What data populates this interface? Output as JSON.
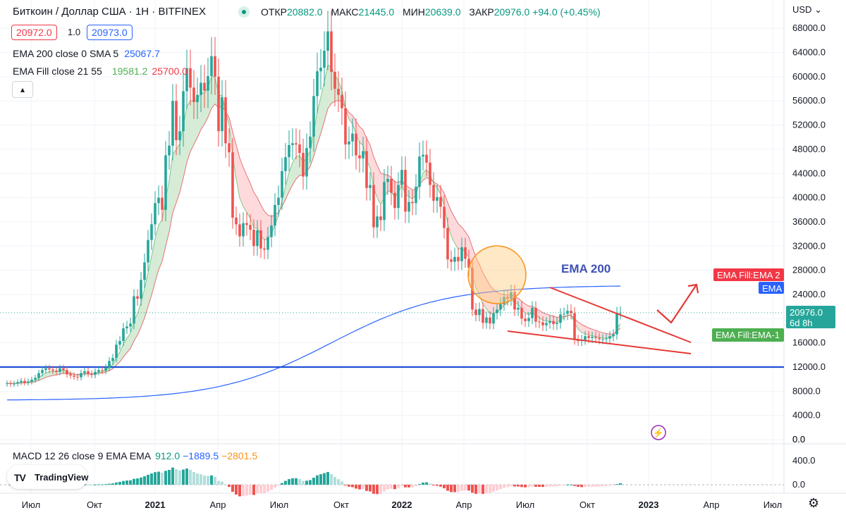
{
  "header": {
    "title": "Биткоин / Доллар США · 1Н · BITFINEX",
    "ohlc": [
      {
        "k": "ОТКР",
        "v": "20882.0"
      },
      {
        "k": "МАКС",
        "v": "21445.0"
      },
      {
        "k": "МИН",
        "v": "20639.0"
      },
      {
        "k": "ЗАКР",
        "v": "20976.0 +94.0 (+0.45%)"
      }
    ],
    "bid": "20972.0",
    "spread": "1.0",
    "ask": "20973.0",
    "currency": "USD"
  },
  "indicators": {
    "ema_label": "EMA 200 close 0 SMA 5",
    "ema_value": "25067.7",
    "fill_label": "EMA Fill close 21 55",
    "fill_value1": "19581.2",
    "fill_value2": "25700.0"
  },
  "macd": {
    "label": "MACD 12 26 close 9 EMA EMA",
    "hist": "912.0",
    "macd": "−1889.5",
    "signal": "−2801.5"
  },
  "branding": "TradingView",
  "chart_data": {
    "type": "candlestick",
    "y_axis": {
      "range": [
        0,
        70000
      ],
      "ticks": [
        "68000.0",
        "64000.0",
        "60000.0",
        "56000.0",
        "52000.0",
        "48000.0",
        "44000.0",
        "40000.0",
        "36000.0",
        "32000.0",
        "28000.0",
        "24000.0",
        "20000.0",
        "16000.0",
        "12000.0",
        "8000.0",
        "4000.0",
        "0.0"
      ]
    },
    "macd_axis": {
      "ticks": [
        "400.0",
        "0.0"
      ]
    },
    "x_axis": {
      "ticks": [
        {
          "label": "Июл",
          "bold": false
        },
        {
          "label": "Окт",
          "bold": false
        },
        {
          "label": "2021",
          "bold": true
        },
        {
          "label": "Апр",
          "bold": false
        },
        {
          "label": "Июл",
          "bold": false
        },
        {
          "label": "Окт",
          "bold": false
        },
        {
          "label": "2022",
          "bold": true
        },
        {
          "label": "Апр",
          "bold": false
        },
        {
          "label": "Июл",
          "bold": false
        },
        {
          "label": "Окт",
          "bold": false
        },
        {
          "label": "2023",
          "bold": true
        },
        {
          "label": "Апр",
          "bold": false
        },
        {
          "label": "Июл",
          "bold": false
        }
      ]
    },
    "weekly_close": [
      9300,
      9200,
      9250,
      9500,
      9700,
      9400,
      9600,
      9900,
      10200,
      11000,
      11500,
      11800,
      11600,
      11400,
      11200,
      11800,
      11500,
      10800,
      10600,
      10400,
      10300,
      11000,
      11300,
      10900,
      10700,
      11200,
      11500,
      11400,
      11900,
      13000,
      13500,
      15700,
      16300,
      18400,
      18700,
      19200,
      23700,
      23300,
      26400,
      29300,
      33000,
      35600,
      39100,
      40000,
      38000,
      47000,
      48600,
      56000,
      49500,
      51000,
      57600,
      61400,
      58200,
      55800,
      57000,
      59000,
      57700,
      60100,
      63400,
      60000,
      51000,
      56600,
      49000,
      47500,
      36700,
      35600,
      33600,
      35800,
      35500,
      34700,
      32000,
      34600,
      31600,
      31400,
      33500,
      35400,
      38800,
      40000,
      44400,
      46700,
      48700,
      49000,
      48800,
      47400,
      43500,
      48200,
      50100,
      56800,
      60900,
      61500,
      64300,
      67500,
      60800,
      58000,
      57000,
      54800,
      48800,
      49300,
      50600,
      47000,
      46500,
      47700,
      41600,
      42100,
      35100,
      36900,
      36300,
      42600,
      43100,
      40800,
      38300,
      42100,
      44600,
      37700,
      39300,
      39100,
      41800,
      46800,
      47100,
      45800,
      42100,
      39500,
      40100,
      38500,
      35000,
      29800,
      29400,
      30200,
      29500,
      31800,
      29900,
      28400,
      21500,
      20600,
      21600,
      19300,
      20200,
      19200,
      20900,
      21500,
      22400,
      23600,
      23300,
      24400,
      21500,
      21800,
      20000,
      19600,
      20100,
      21800,
      19500,
      19400,
      18900,
      19300,
      19600,
      19100,
      19300,
      20700,
      20800,
      21300,
      20900,
      16500,
      16300,
      16500,
      17100,
      16800,
      17000,
      16800,
      16600,
      16600,
      16700,
      17100,
      17400,
      20900,
      20976
    ],
    "annotations": {
      "ema200_label": "EMA 200",
      "badge_ema2": "EMA Fill:EMA 2",
      "badge_ema": "EMA",
      "badge_price": "20976.0",
      "badge_time": "6d 8h",
      "badge_ema1": "EMA Fill:EMA-1"
    },
    "levels": [
      12000
    ],
    "grid": true,
    "legend": "top-left"
  },
  "colors": {
    "up": "#26a69a",
    "down": "#ef5350",
    "ema200": "#2962ff",
    "fill_green": "#c8e6c9",
    "fill_red": "#ffcdd2",
    "accent_red": "#e53935",
    "level_blue": "#1e4fd6"
  }
}
